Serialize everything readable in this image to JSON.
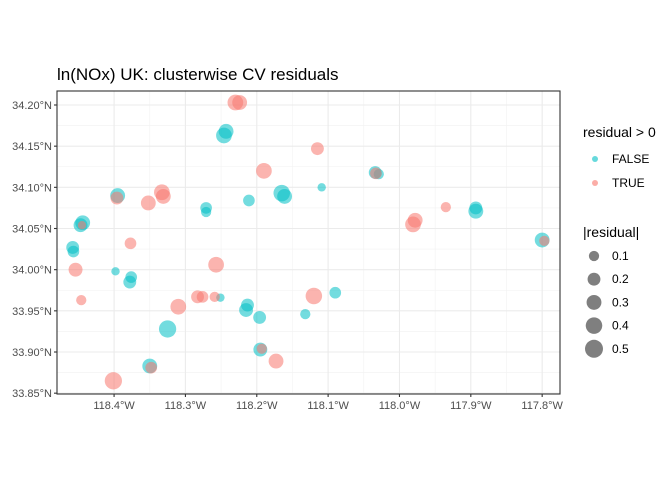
{
  "chart_data": {
    "type": "scatter",
    "title": "ln(NOx) UK: clusterwise CV residuals",
    "xlabel": "",
    "ylabel": "",
    "xlim": [
      -118.48,
      -117.775
    ],
    "ylim": [
      33.849,
      34.217
    ],
    "x_ticks": [
      {
        "value": -118.4,
        "label": "118.4°W"
      },
      {
        "value": -118.3,
        "label": "118.3°W"
      },
      {
        "value": -118.2,
        "label": "118.2°W"
      },
      {
        "value": -118.1,
        "label": "118.1°W"
      },
      {
        "value": -118.0,
        "label": "118.0°W"
      },
      {
        "value": -117.9,
        "label": "117.9°W"
      },
      {
        "value": -117.8,
        "label": "117.8°W"
      }
    ],
    "y_ticks": [
      {
        "value": 33.85,
        "label": "33.85°N"
      },
      {
        "value": 33.9,
        "label": "33.90°N"
      },
      {
        "value": 33.95,
        "label": "33.95°N"
      },
      {
        "value": 34.0,
        "label": "34.00°N"
      },
      {
        "value": 34.05,
        "label": "34.05°N"
      },
      {
        "value": 34.1,
        "label": "34.10°N"
      },
      {
        "value": 34.15,
        "label": "34.15°N"
      },
      {
        "value": 34.2,
        "label": "34.20°N"
      }
    ],
    "grid": true,
    "color_legend": {
      "title": "residual > 0",
      "entries": [
        {
          "label": "FALSE",
          "color": "#00BFC4"
        },
        {
          "label": "TRUE",
          "color": "#F8766D"
        }
      ]
    },
    "size_legend": {
      "title": "|residual|",
      "entries": [
        {
          "label": "0.1",
          "value": 0.1
        },
        {
          "label": "0.2",
          "value": 0.2
        },
        {
          "label": "0.3",
          "value": 0.3
        },
        {
          "label": "0.4",
          "value": 0.4
        },
        {
          "label": "0.5",
          "value": 0.5
        }
      ]
    },
    "legend_position": "right",
    "series": [
      {
        "name": "FALSE",
        "color": "#00BFC4",
        "points": [
          {
            "x": -118.458,
            "y": 34.027,
            "abs_residual": 0.2
          },
          {
            "x": -118.457,
            "y": 34.022,
            "abs_residual": 0.15
          },
          {
            "x": -118.444,
            "y": 34.057,
            "abs_residual": 0.3
          },
          {
            "x": -118.447,
            "y": 34.054,
            "abs_residual": 0.25
          },
          {
            "x": -118.398,
            "y": 33.998,
            "abs_residual": 0.05
          },
          {
            "x": -118.395,
            "y": 34.09,
            "abs_residual": 0.3
          },
          {
            "x": -118.378,
            "y": 33.985,
            "abs_residual": 0.2
          },
          {
            "x": -118.376,
            "y": 33.991,
            "abs_residual": 0.15
          },
          {
            "x": -118.35,
            "y": 33.883,
            "abs_residual": 0.3
          },
          {
            "x": -118.325,
            "y": 33.928,
            "abs_residual": 0.45
          },
          {
            "x": -118.271,
            "y": 34.075,
            "abs_residual": 0.15
          },
          {
            "x": -118.271,
            "y": 34.07,
            "abs_residual": 0.1
          },
          {
            "x": -118.251,
            "y": 33.966,
            "abs_residual": 0.05
          },
          {
            "x": -118.246,
            "y": 34.163,
            "abs_residual": 0.35
          },
          {
            "x": -118.243,
            "y": 34.168,
            "abs_residual": 0.3
          },
          {
            "x": -118.215,
            "y": 33.951,
            "abs_residual": 0.25
          },
          {
            "x": -118.213,
            "y": 33.957,
            "abs_residual": 0.2
          },
          {
            "x": -118.211,
            "y": 34.084,
            "abs_residual": 0.15
          },
          {
            "x": -118.195,
            "y": 33.903,
            "abs_residual": 0.25
          },
          {
            "x": -118.196,
            "y": 33.942,
            "abs_residual": 0.2
          },
          {
            "x": -118.165,
            "y": 34.093,
            "abs_residual": 0.4
          },
          {
            "x": -118.161,
            "y": 34.089,
            "abs_residual": 0.3
          },
          {
            "x": -118.132,
            "y": 33.946,
            "abs_residual": 0.1
          },
          {
            "x": -118.109,
            "y": 34.1,
            "abs_residual": 0.05
          },
          {
            "x": -118.09,
            "y": 33.972,
            "abs_residual": 0.15
          },
          {
            "x": -118.034,
            "y": 34.118,
            "abs_residual": 0.2
          },
          {
            "x": -118.029,
            "y": 34.116,
            "abs_residual": 0.1
          },
          {
            "x": -117.893,
            "y": 34.071,
            "abs_residual": 0.3
          },
          {
            "x": -117.893,
            "y": 34.075,
            "abs_residual": 0.2
          },
          {
            "x": -117.8,
            "y": 34.036,
            "abs_residual": 0.3
          }
        ]
      },
      {
        "name": "TRUE",
        "color": "#F8766D",
        "points": [
          {
            "x": -118.454,
            "y": 34.0,
            "abs_residual": 0.25
          },
          {
            "x": -118.446,
            "y": 33.963,
            "abs_residual": 0.1
          },
          {
            "x": -118.445,
            "y": 34.054,
            "abs_residual": 0.05
          },
          {
            "x": -118.401,
            "y": 33.865,
            "abs_residual": 0.45
          },
          {
            "x": -118.396,
            "y": 34.087,
            "abs_residual": 0.2
          },
          {
            "x": -118.377,
            "y": 34.032,
            "abs_residual": 0.15
          },
          {
            "x": -118.352,
            "y": 34.081,
            "abs_residual": 0.3
          },
          {
            "x": -118.348,
            "y": 33.881,
            "abs_residual": 0.15
          },
          {
            "x": -118.333,
            "y": 34.094,
            "abs_residual": 0.35
          },
          {
            "x": -118.331,
            "y": 34.089,
            "abs_residual": 0.3
          },
          {
            "x": -118.31,
            "y": 33.955,
            "abs_residual": 0.35
          },
          {
            "x": -118.283,
            "y": 33.967,
            "abs_residual": 0.2
          },
          {
            "x": -118.276,
            "y": 33.967,
            "abs_residual": 0.15
          },
          {
            "x": -118.259,
            "y": 33.967,
            "abs_residual": 0.1
          },
          {
            "x": -118.257,
            "y": 34.006,
            "abs_residual": 0.35
          },
          {
            "x": -118.23,
            "y": 34.203,
            "abs_residual": 0.35
          },
          {
            "x": -118.224,
            "y": 34.203,
            "abs_residual": 0.3
          },
          {
            "x": -118.19,
            "y": 34.12,
            "abs_residual": 0.35
          },
          {
            "x": -118.193,
            "y": 33.904,
            "abs_residual": 0.1
          },
          {
            "x": -118.173,
            "y": 33.889,
            "abs_residual": 0.3
          },
          {
            "x": -118.12,
            "y": 33.968,
            "abs_residual": 0.4
          },
          {
            "x": -118.115,
            "y": 34.147,
            "abs_residual": 0.2
          },
          {
            "x": -118.033,
            "y": 34.117,
            "abs_residual": 0.15
          },
          {
            "x": -117.981,
            "y": 34.055,
            "abs_residual": 0.35
          },
          {
            "x": -117.978,
            "y": 34.06,
            "abs_residual": 0.3
          },
          {
            "x": -117.935,
            "y": 34.076,
            "abs_residual": 0.1
          },
          {
            "x": -117.797,
            "y": 34.035,
            "abs_residual": 0.1
          }
        ]
      }
    ]
  }
}
